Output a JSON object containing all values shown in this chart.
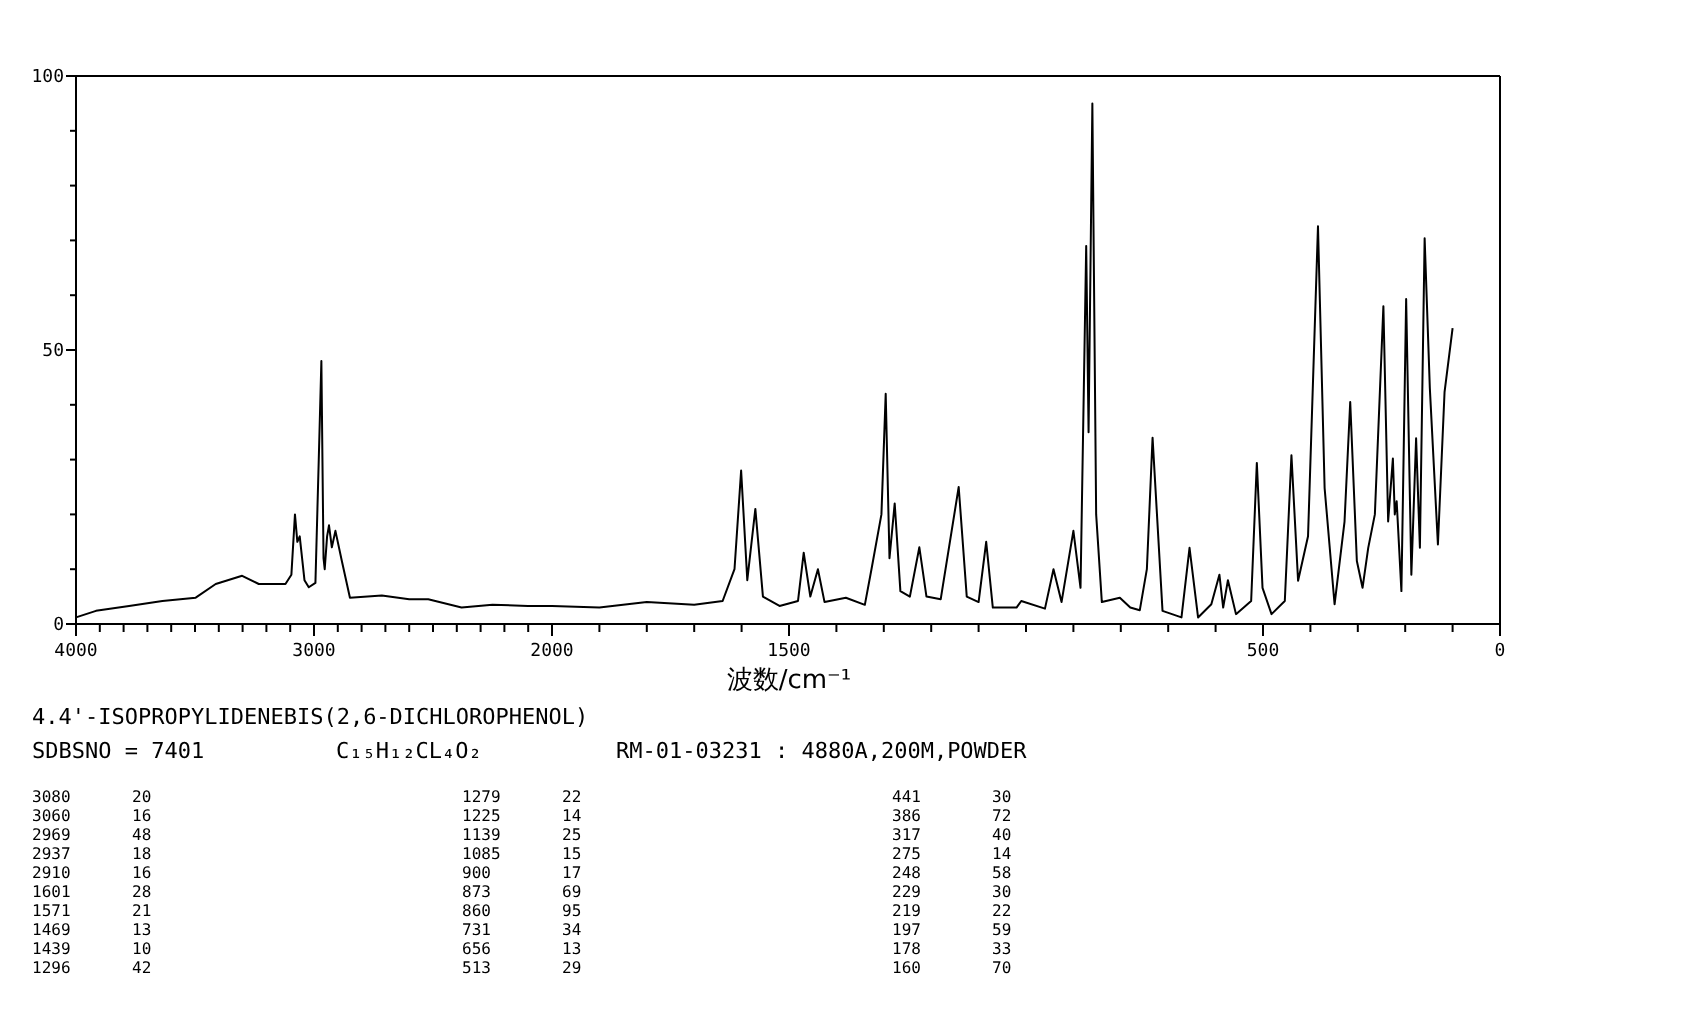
{
  "chart_data": [
    {
      "type": "line",
      "title": "4.4'-ISOPROPYLIDENEBIS(2,6-DICHLOROPHENOL)",
      "subtitle": "SDBSNO = 7401",
      "annotations": [
        "C₁₅H₁₂CL₄O₂",
        "RM-01-03231 : 4880A,200M,POWDER",
        "3080 20",
        "3060 16",
        "2969 48",
        "2937 18",
        "2910 16",
        "1601 28",
        "1571 21",
        "1469 13",
        "1439 10",
        "1296 42",
        "1279 22",
        "1225 14",
        "1139 25",
        "1085 15",
        "900 17",
        "873 69",
        "860 95",
        "731 34",
        "656 13",
        "513 29",
        "441 30",
        "386 72",
        "317 40",
        "275 14",
        "248 58",
        "229 30",
        "219 22",
        "197 59",
        "178 33",
        "160 70"
      ],
      "xlim": [
        4000,
        2000
      ],
      "xticks": [
        4000,
        {
          "value": 3900,
          "label": null
        },
        {
          "value": 3800,
          "label": null
        },
        {
          "value": 3700,
          "label": null
        },
        {
          "value": 3600,
          "label": null
        },
        {
          "value": 3500,
          "label": null
        },
        {
          "value": 3400,
          "label": null
        },
        {
          "value": 3300,
          "label": null
        },
        {
          "value": 3200,
          "label": null
        },
        {
          "value": 3100,
          "label": null
        },
        3000,
        {
          "value": 2900,
          "label": null
        },
        {
          "value": 2800,
          "label": null
        },
        {
          "value": 2700,
          "label": null
        },
        {
          "value": 2600,
          "label": null
        },
        {
          "value": 2500,
          "label": null
        },
        {
          "value": 2400,
          "label": null
        },
        {
          "value": 2300,
          "label": null
        },
        {
          "value": 2200,
          "label": null
        },
        {
          "value": 2100,
          "label": null
        },
        2000
      ],
      "ylim": [
        0,
        100
      ],
      "yticks": [
        0,
        {
          "value": 10,
          "label": null
        },
        {
          "value": 20,
          "label": null
        },
        {
          "value": 30,
          "label": null
        },
        {
          "value": 40,
          "label": null
        },
        50,
        {
          "value": 60,
          "label": null
        },
        {
          "value": 70,
          "label": null
        },
        {
          "value": 80,
          "label": null
        },
        {
          "value": 90,
          "label": null
        },
        100
      ],
      "series": [
        {
          "color": "#000000",
          "x": [
            4000,
            3916,
            3777,
            3637,
            3497,
            3413,
            3302,
            3232,
            3120,
            3095,
            3080,
            3070,
            3060,
            3040,
            3022,
            2994,
            2980,
            2969,
            2960,
            2955,
            2945,
            2937,
            2925,
            2910,
            2883,
            2849,
            2715,
            2600,
            2520,
            2380,
            2250,
            2101,
            2000
          ],
          "values": [
            1.2,
            2.4,
            3.3,
            4.2,
            4.8,
            7.3,
            8.8,
            7.3,
            7.3,
            9,
            20,
            15,
            16,
            8,
            6.7,
            7.5,
            30,
            48,
            12,
            10,
            16,
            18,
            14,
            17,
            11.5,
            4.8,
            5.2,
            4.5,
            4.5,
            3,
            3.5,
            3.3,
            3.3
          ]
        }
      ]
    },
    {
      "type": "line",
      "xlabel": "波数/cm⁻¹",
      "tick_labels": "x",
      "xlim": [
        2000,
        0
      ],
      "xticks": [
        {
          "value": 2000,
          "label": null
        },
        {
          "value": 1900,
          "label": null
        },
        {
          "value": 1800,
          "label": null
        },
        {
          "value": 1700,
          "label": null
        },
        {
          "value": 1600,
          "label": null
        },
        1500,
        {
          "value": 1400,
          "label": null
        },
        {
          "value": 1300,
          "label": null
        },
        {
          "value": 1200,
          "label": null
        },
        {
          "value": 1100,
          "label": null
        },
        {
          "value": 1000,
          "label": null
        },
        {
          "value": 900,
          "label": null
        },
        {
          "value": 800,
          "label": null
        },
        {
          "value": 700,
          "label": null
        },
        {
          "value": 600,
          "label": null
        },
        500,
        {
          "value": 400,
          "label": null
        },
        {
          "value": 300,
          "label": null
        },
        {
          "value": 200,
          "label": null
        },
        {
          "value": 100,
          "label": null
        },
        0
      ],
      "ylim": [
        0,
        100
      ],
      "series": [
        {
          "color": "#000000",
          "x": [
            2000,
            1900,
            1800,
            1700,
            1640,
            1615,
            1601,
            1588,
            1571,
            1555,
            1520,
            1481,
            1469,
            1455,
            1439,
            1425,
            1380,
            1340,
            1326,
            1305,
            1296,
            1288,
            1277,
            1265,
            1245,
            1225,
            1210,
            1180,
            1142,
            1125,
            1100,
            1084,
            1070,
            1020,
            1010,
            960,
            942,
            925,
            900,
            885,
            873,
            868,
            860,
            852,
            840,
            802,
            780,
            760,
            745,
            733,
            712,
            672,
            655,
            637,
            609,
            592,
            584,
            574,
            557,
            525,
            513,
            501,
            482,
            454,
            440,
            426,
            405,
            384,
            370,
            349,
            328,
            316,
            302,
            290,
            278,
            264,
            246,
            236,
            226,
            222,
            218,
            208,
            198,
            187,
            177,
            169,
            159,
            148,
            131,
            117,
            100
          ],
          "values": [
            3.3,
            3,
            4,
            3.5,
            4.2,
            10,
            28,
            8,
            21,
            5,
            3.3,
            4.2,
            13,
            5,
            10,
            4,
            4.8,
            3.5,
            10,
            20,
            42,
            12,
            22,
            6,
            5,
            14,
            5,
            4.5,
            25,
            5,
            4,
            15,
            3,
            3,
            4.2,
            2.8,
            10,
            4,
            17,
            6.6,
            69,
            35,
            95,
            20,
            4,
            4.8,
            3,
            2.5,
            10,
            34,
            2.4,
            1.2,
            13.9,
            1.2,
            3.6,
            9,
            3,
            8,
            1.8,
            4.2,
            29.4,
            6.6,
            1.8,
            4.2,
            30.8,
            7.9,
            16,
            72.6,
            24.8,
            3.6,
            18.7,
            40.5,
            11.5,
            6.6,
            13.9,
            20,
            58,
            18.7,
            30.2,
            20,
            22.4,
            6,
            59.3,
            9,
            33.9,
            13.9,
            70.4,
            43,
            14.5,
            42.3,
            54
          ]
        }
      ]
    }
  ]
}
